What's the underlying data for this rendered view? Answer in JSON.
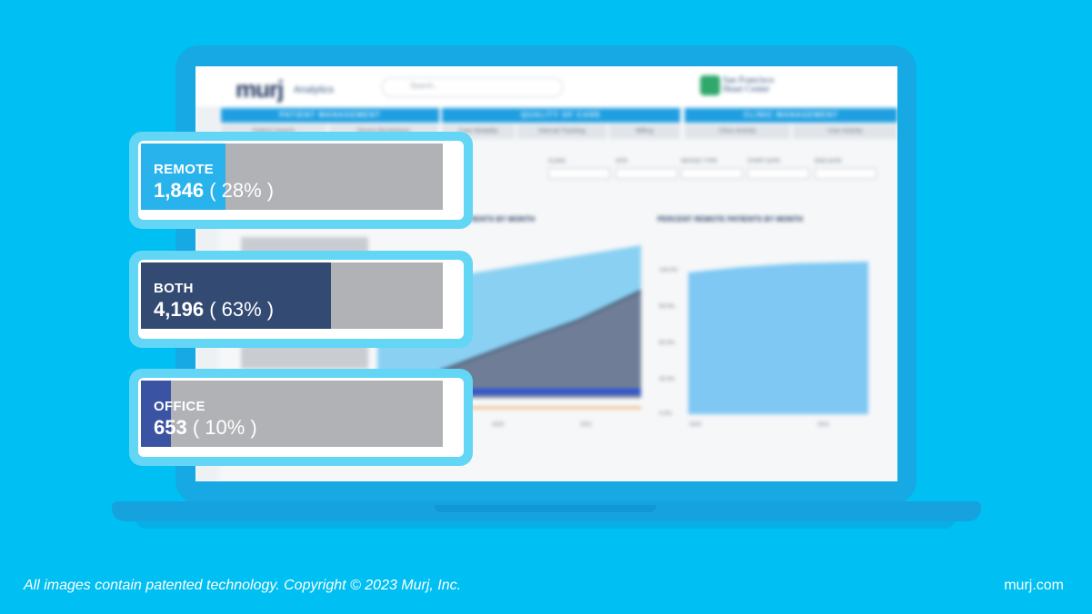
{
  "colors": {
    "background": "#00bff2",
    "laptop": "#16a9e4",
    "card_border": "#63d6f6",
    "bar_track": "#b0b2b5",
    "remote": "#29b3ec",
    "both": "#334a73",
    "office": "#3b53a3"
  },
  "dashboard": {
    "logo": "murj",
    "logo_sub": "Analytics",
    "search_placeholder": "Search...",
    "clinic_name_line1": "San Francisco",
    "clinic_name_line2": "Heart Center",
    "sections": [
      "PATIENT MANAGEMENT",
      "QUALITY OF CARE",
      "CLINIC MANAGEMENT"
    ],
    "tabs": [
      "Patient Search",
      "Device Breakdown",
      "Care Modality",
      "Interval Tracking",
      "Billing",
      "Clinic Activity",
      "User Activity"
    ],
    "filters": [
      "CLINIC",
      "SITE",
      "DEVICE TYPE",
      "START DATE",
      "END DATE"
    ],
    "chart_left_title": "PATIENTS BY MONTH",
    "chart_right_title": "PERCENT REMOTE PATIENTS BY MONTH",
    "y_ticks": [
      "100.0%",
      "80.0%",
      "60.0%",
      "40.0%",
      "20.0%",
      "0.0%"
    ],
    "x_ticks": [
      "2020",
      "2021"
    ]
  },
  "cards": [
    {
      "label": "REMOTE",
      "count": "1,846",
      "percent": "( 28% )",
      "fill_fraction": 0.28,
      "color": "#29b3ec"
    },
    {
      "label": "BOTH",
      "count": "4,196",
      "percent": "( 63% )",
      "fill_fraction": 0.63,
      "color": "#334a73"
    },
    {
      "label": "OFFICE",
      "count": "653",
      "percent": "( 10% )",
      "fill_fraction": 0.1,
      "color": "#3b53a3"
    }
  ],
  "footer": {
    "copyright": "All images contain patented technology. Copyright © 2023 Murj, Inc.",
    "site": "murj.com"
  }
}
